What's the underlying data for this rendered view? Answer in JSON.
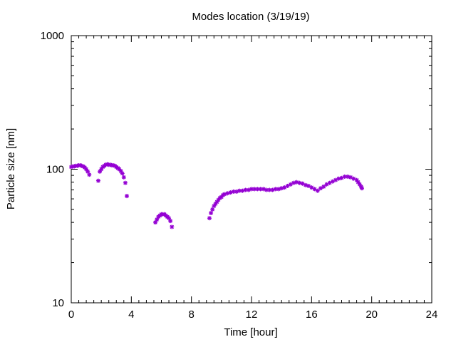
{
  "chart_data": {
    "type": "scatter",
    "title": "Modes location (3/19/19)",
    "xlabel": "Time [hour]",
    "ylabel": "Particle size [nm]",
    "xlim": [
      0,
      24
    ],
    "ylim": [
      10,
      1000
    ],
    "yscale": "log",
    "grid": false,
    "legend": "none",
    "marker_color": "#9400d3",
    "x_ticks": [
      0,
      4,
      8,
      12,
      16,
      20,
      24
    ],
    "x_tick_labels": [
      "0",
      "4",
      "8",
      "12",
      "16",
      "20",
      "24"
    ],
    "y_ticks": [
      10,
      100,
      1000
    ],
    "y_tick_labels": [
      "10",
      "100",
      "1000"
    ],
    "series": [
      {
        "x": [
          0.0,
          0.1,
          0.2,
          0.3,
          0.4,
          0.5,
          0.6,
          0.7,
          0.8,
          0.9,
          1.0,
          1.1,
          1.2,
          1.8,
          1.9,
          2.0,
          2.1,
          2.2,
          2.3,
          2.4,
          2.5,
          2.6,
          2.7,
          2.8,
          2.9,
          3.0,
          3.1,
          3.2,
          3.3,
          3.4,
          3.5,
          3.6,
          3.7,
          5.6,
          5.7,
          5.8,
          5.9,
          6.0,
          6.1,
          6.2,
          6.3,
          6.4,
          6.5,
          6.6,
          6.7,
          9.2,
          9.3,
          9.4,
          9.5,
          9.6,
          9.7,
          9.8,
          9.9,
          10.0,
          10.1,
          10.2,
          10.4,
          10.6,
          10.8,
          11.0,
          11.2,
          11.4,
          11.6,
          11.8,
          12.0,
          12.2,
          12.4,
          12.6,
          12.8,
          13.0,
          13.2,
          13.4,
          13.6,
          13.8,
          14.0,
          14.2,
          14.4,
          14.6,
          14.8,
          15.0,
          15.2,
          15.4,
          15.6,
          15.8,
          16.0,
          16.2,
          16.4,
          16.6,
          16.8,
          17.0,
          17.2,
          17.4,
          17.6,
          17.8,
          18.0,
          18.2,
          18.4,
          18.6,
          18.8,
          19.0,
          19.1,
          19.2,
          19.3,
          19.35
        ],
        "y": [
          104,
          105,
          105,
          106,
          106,
          107,
          107,
          106,
          105,
          103,
          100,
          96,
          91,
          82,
          96,
          100,
          104,
          106,
          108,
          109,
          108,
          108,
          107,
          107,
          106,
          104,
          102,
          100,
          97,
          93,
          87,
          79,
          63,
          40,
          42,
          44,
          45,
          46,
          46,
          46,
          45,
          44,
          43,
          41,
          37,
          43,
          47,
          50,
          53,
          55,
          57,
          59,
          61,
          62,
          64,
          65,
          66,
          67,
          68,
          68,
          69,
          69,
          70,
          70,
          71,
          71,
          71,
          71,
          71,
          70,
          70,
          70,
          71,
          71,
          72,
          73,
          75,
          77,
          79,
          80,
          79,
          78,
          76,
          75,
          73,
          71,
          69,
          72,
          74,
          77,
          79,
          81,
          83,
          85,
          86,
          88,
          88,
          87,
          85,
          83,
          80,
          77,
          74,
          72
        ]
      }
    ]
  }
}
